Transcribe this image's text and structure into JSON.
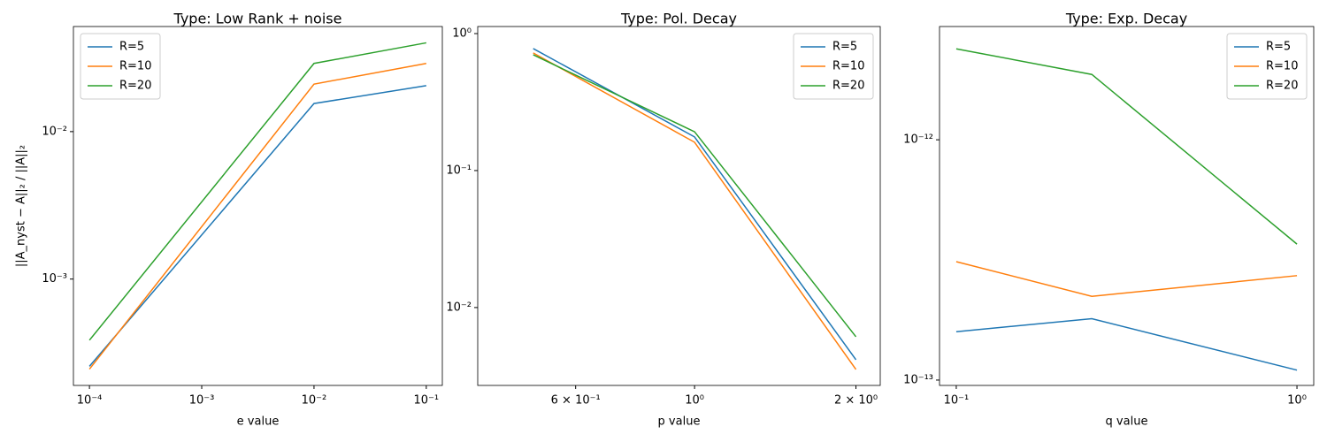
{
  "chart_data": [
    {
      "type": "line",
      "title": "Type: Low Rank + noise",
      "xlabel": "e value",
      "ylabel": "||A_nyst − A||₂ / ||A||₂",
      "xscale": "log",
      "yscale": "log",
      "legend": "upper left",
      "x": [
        0.0001,
        0.01,
        0.1
      ],
      "series": [
        {
          "name": "R=5",
          "color": "#1f77b4",
          "values": [
            0.000256,
            0.0155,
            0.0205
          ]
        },
        {
          "name": "R=10",
          "color": "#ff7f0e",
          "values": [
            0.000245,
            0.021,
            0.029
          ]
        },
        {
          "name": "R=20",
          "color": "#2ca02c",
          "values": [
            0.000385,
            0.029,
            0.04
          ]
        }
      ],
      "xlim": [
        7.2e-05,
        0.139
      ],
      "ylim": [
        0.00019,
        0.0516
      ],
      "xticks": [
        {
          "value": 0.0001,
          "label": "10⁻⁴"
        },
        {
          "value": 0.001,
          "label": "10⁻³"
        },
        {
          "value": 0.01,
          "label": "10⁻²"
        },
        {
          "value": 0.1,
          "label": "10⁻¹"
        }
      ],
      "yticks": [
        {
          "value": 0.001,
          "label": "10⁻³"
        },
        {
          "value": 0.01,
          "label": "10⁻²"
        }
      ]
    },
    {
      "type": "line",
      "title": "Type: Pol. Decay",
      "xlabel": "p value",
      "xscale": "log",
      "yscale": "log",
      "legend": "upper right",
      "x": [
        0.5,
        1,
        2
      ],
      "series": [
        {
          "name": "R=5",
          "color": "#1f77b4",
          "values": [
            0.777,
            0.176,
            0.00416
          ]
        },
        {
          "name": "R=10",
          "color": "#ff7f0e",
          "values": [
            0.722,
            0.161,
            0.00353
          ]
        },
        {
          "name": "R=20",
          "color": "#2ca02c",
          "values": [
            0.7,
            0.192,
            0.00612
          ]
        }
      ],
      "xlim": [
        0.394,
        2.22
      ],
      "ylim": [
        0.0027,
        1.126
      ],
      "xticks": [
        {
          "value": 0.6,
          "label": "6 × 10⁻¹"
        },
        {
          "value": 1,
          "label": "10⁰"
        },
        {
          "value": 2,
          "label": "2 × 10⁰"
        }
      ],
      "yticks": [
        {
          "value": 0.01,
          "label": "10⁻²"
        },
        {
          "value": 0.1,
          "label": "10⁻¹"
        },
        {
          "value": 1,
          "label": "10⁰"
        }
      ]
    },
    {
      "type": "line",
      "title": "Type: Exp. Decay",
      "xlabel": "q value",
      "xscale": "log",
      "yscale": "log",
      "legend": "upper right",
      "x": [
        0.1,
        0.25,
        1
      ],
      "series": [
        {
          "name": "R=5",
          "color": "#1f77b4",
          "values": [
            1.59e-13,
            1.8e-13,
            1.1e-13
          ]
        },
        {
          "name": "R=10",
          "color": "#ff7f0e",
          "values": [
            3.11e-13,
            2.23e-13,
            2.72e-13
          ]
        },
        {
          "name": "R=20",
          "color": "#2ca02c",
          "values": [
            2.39e-12,
            1.87e-12,
            3.68e-13
          ]
        }
      ],
      "xlim": [
        0.0893,
        1.12
      ],
      "ylim": [
        9.5e-14,
        2.96e-12
      ],
      "xticks": [
        {
          "value": 0.1,
          "label": "10⁻¹"
        },
        {
          "value": 1,
          "label": "10⁰"
        }
      ],
      "yticks": [
        {
          "value": 1e-13,
          "label": "10⁻¹³"
        },
        {
          "value": 1e-12,
          "label": "10⁻¹²"
        }
      ]
    }
  ]
}
